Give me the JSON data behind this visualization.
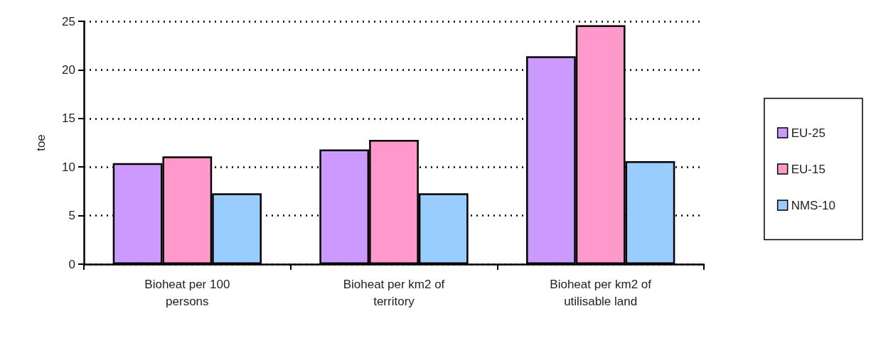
{
  "chart_data": {
    "type": "bar",
    "ylabel": "toe",
    "categories": [
      "Bioheat per 100\npersons",
      "Bioheat per km2 of\nterritory",
      "Bioheat per km2 of\nutilisable land"
    ],
    "series": [
      {
        "name": "EU-25",
        "color": "#cc99ff",
        "values": [
          10.4,
          11.8,
          21.4
        ]
      },
      {
        "name": "EU-15",
        "color": "#ff99cc",
        "values": [
          11.1,
          12.8,
          24.6
        ]
      },
      {
        "name": "NMS-10",
        "color": "#99ccff",
        "values": [
          7.3,
          7.3,
          10.6
        ]
      }
    ],
    "ylim": [
      0,
      25
    ],
    "yticks": [
      0,
      5,
      10,
      15,
      20,
      25
    ],
    "grid": "y",
    "legend": "right"
  }
}
